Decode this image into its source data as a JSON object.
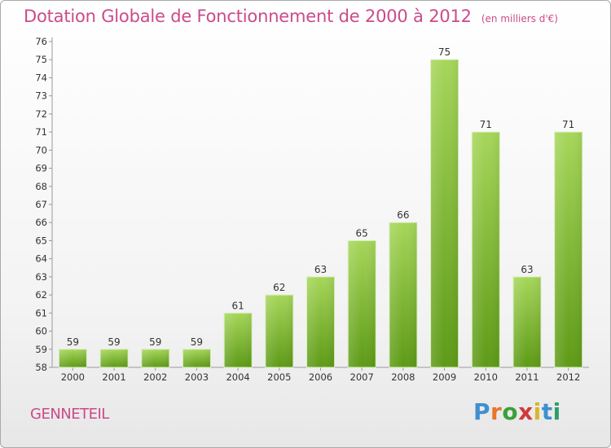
{
  "title": "Dotation Globale de Fonctionnement de 2000 à 2012",
  "subtitle": "(en milliers d'€)",
  "commune": "GENNETEIL",
  "logo": {
    "letters": [
      "P",
      "r",
      "o",
      "x",
      "i",
      "t",
      "i"
    ],
    "colors": [
      "#3f8fd0",
      "#e8762b",
      "#3aa13a",
      "#d13a3a",
      "#d8b62a",
      "#3f8fd0",
      "#2e9e68"
    ]
  },
  "chart_data": {
    "type": "bar",
    "categories": [
      "2000",
      "2001",
      "2002",
      "2003",
      "2004",
      "2005",
      "2006",
      "2007",
      "2008",
      "2009",
      "2010",
      "2011",
      "2012"
    ],
    "values": [
      59,
      59,
      59,
      59,
      61,
      62,
      63,
      65,
      66,
      75,
      71,
      63,
      71
    ],
    "ylim": [
      58,
      76
    ],
    "yticks": [
      58,
      59,
      60,
      61,
      62,
      63,
      64,
      65,
      66,
      67,
      68,
      69,
      70,
      71,
      72,
      73,
      74,
      75,
      76
    ],
    "grid": false,
    "bar_color": "#7cc232"
  }
}
